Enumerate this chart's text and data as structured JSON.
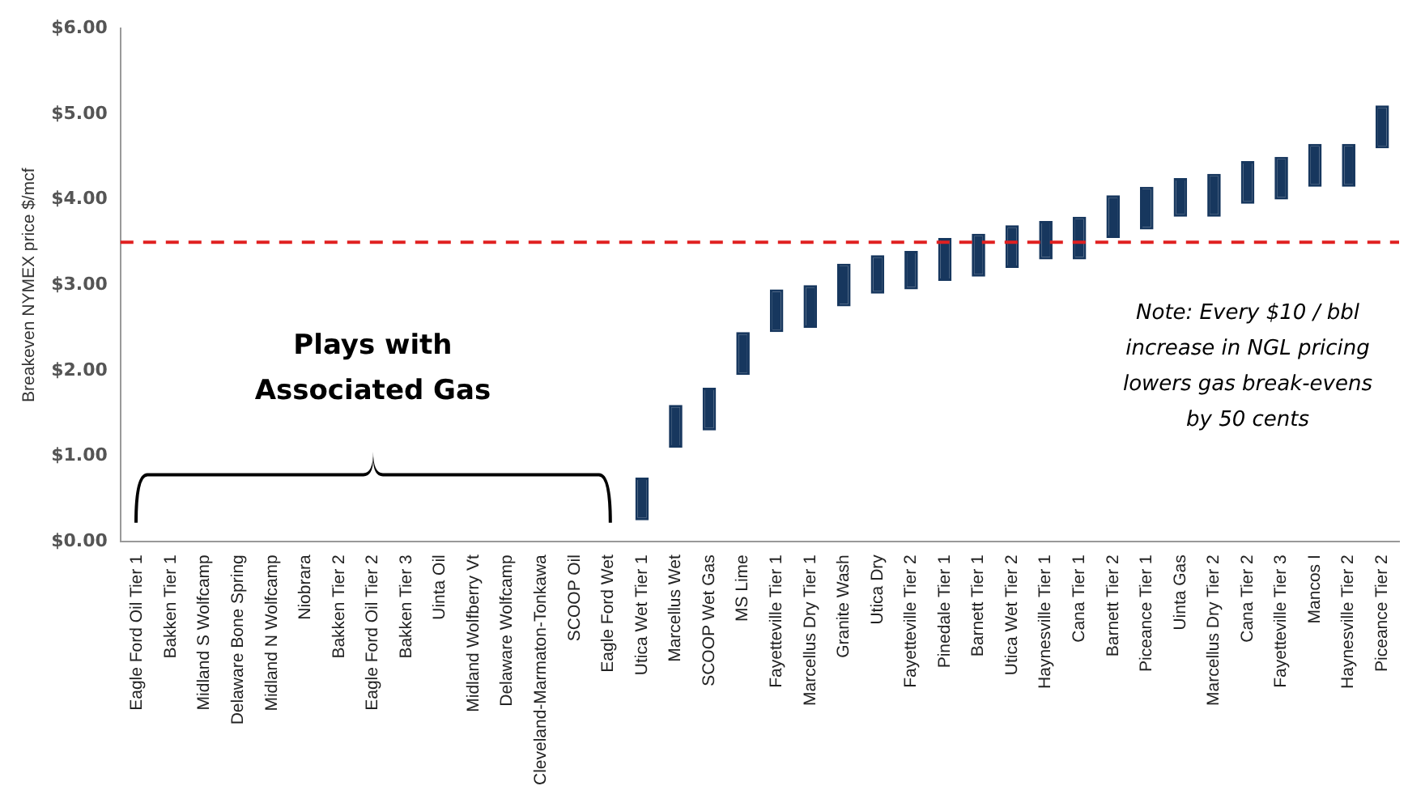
{
  "chart_data": {
    "type": "bar",
    "ylabel": "Breakeven NYMEX price $/mcf",
    "categories": [
      "Eagle Ford Oil Tier 1",
      "Bakken Tier 1",
      "Midland S Wolfcamp",
      "Delaware Bone Spring",
      "Midland N Wolfcamp",
      "Niobrara",
      "Bakken Tier 2",
      "Eagle Ford Oil Tier 2",
      "Bakken Tier 3",
      "Uinta Oil",
      "Midland Wolfberry Vt",
      "Delaware Wolfcamp",
      "Cleveland-Marmaton-Tonkawa",
      "SCOOP Oil",
      "Eagle Ford Wet",
      "Utica Wet Tier 1",
      "Marcellus Wet",
      "SCOOP Wet Gas",
      "MS Lime",
      "Fayetteville Tier 1",
      "Marcellus Dry Tier 1",
      "Granite Wash",
      "Utica Dry",
      "Fayetteville Tier 2",
      "Pinedale Tier 1",
      "Barnett Tier 1",
      "Utica Wet Tier 2",
      "Haynesville Tier 1",
      "Cana Tier 1",
      "Barnett Tier 2",
      "Piceance Tier 1",
      "Uinta Gas",
      "Marcellus Dry Tier 2",
      "Cana Tier 2",
      "Fayetteville Tier 3",
      "Mancos I",
      "Haynesville Tier 2",
      "Piceance Tier 2"
    ],
    "base": [
      null,
      null,
      null,
      null,
      null,
      null,
      null,
      null,
      null,
      null,
      null,
      null,
      null,
      null,
      null,
      0.25,
      1.1,
      1.3,
      1.95,
      2.45,
      2.5,
      2.75,
      2.9,
      2.95,
      3.05,
      3.1,
      3.2,
      3.3,
      3.3,
      3.55,
      3.65,
      3.8,
      3.8,
      3.95,
      4.0,
      4.15,
      4.15,
      4.6
    ],
    "values": [
      null,
      null,
      null,
      null,
      null,
      null,
      null,
      null,
      null,
      null,
      null,
      null,
      null,
      null,
      null,
      0.5,
      0.5,
      0.5,
      0.5,
      0.5,
      0.5,
      0.5,
      0.45,
      0.45,
      0.5,
      0.5,
      0.5,
      0.45,
      0.5,
      0.5,
      0.5,
      0.45,
      0.5,
      0.5,
      0.5,
      0.5,
      0.5,
      0.5
    ],
    "color": "#17375e",
    "ylim": [
      0,
      6
    ],
    "yticks": [
      {
        "value": 0,
        "label": "$0.00"
      },
      {
        "value": 1,
        "label": "$1.00"
      },
      {
        "value": 2,
        "label": "$2.00"
      },
      {
        "value": 3,
        "label": "$3.00"
      },
      {
        "value": 4,
        "label": "$4.00"
      },
      {
        "value": 5,
        "label": "$5.00"
      },
      {
        "value": 6,
        "label": "$6.00"
      }
    ],
    "ref_lines": [
      {
        "axis": "y",
        "value": 3.5,
        "color": "#e02020",
        "line_style": "dashed"
      }
    ],
    "annotations": [
      "Plays with Associated Gas",
      "Note: Every $10 / bbl increase in NGL pricing lowers gas break-evens by 50 cents"
    ],
    "grid": false,
    "legend": false
  }
}
